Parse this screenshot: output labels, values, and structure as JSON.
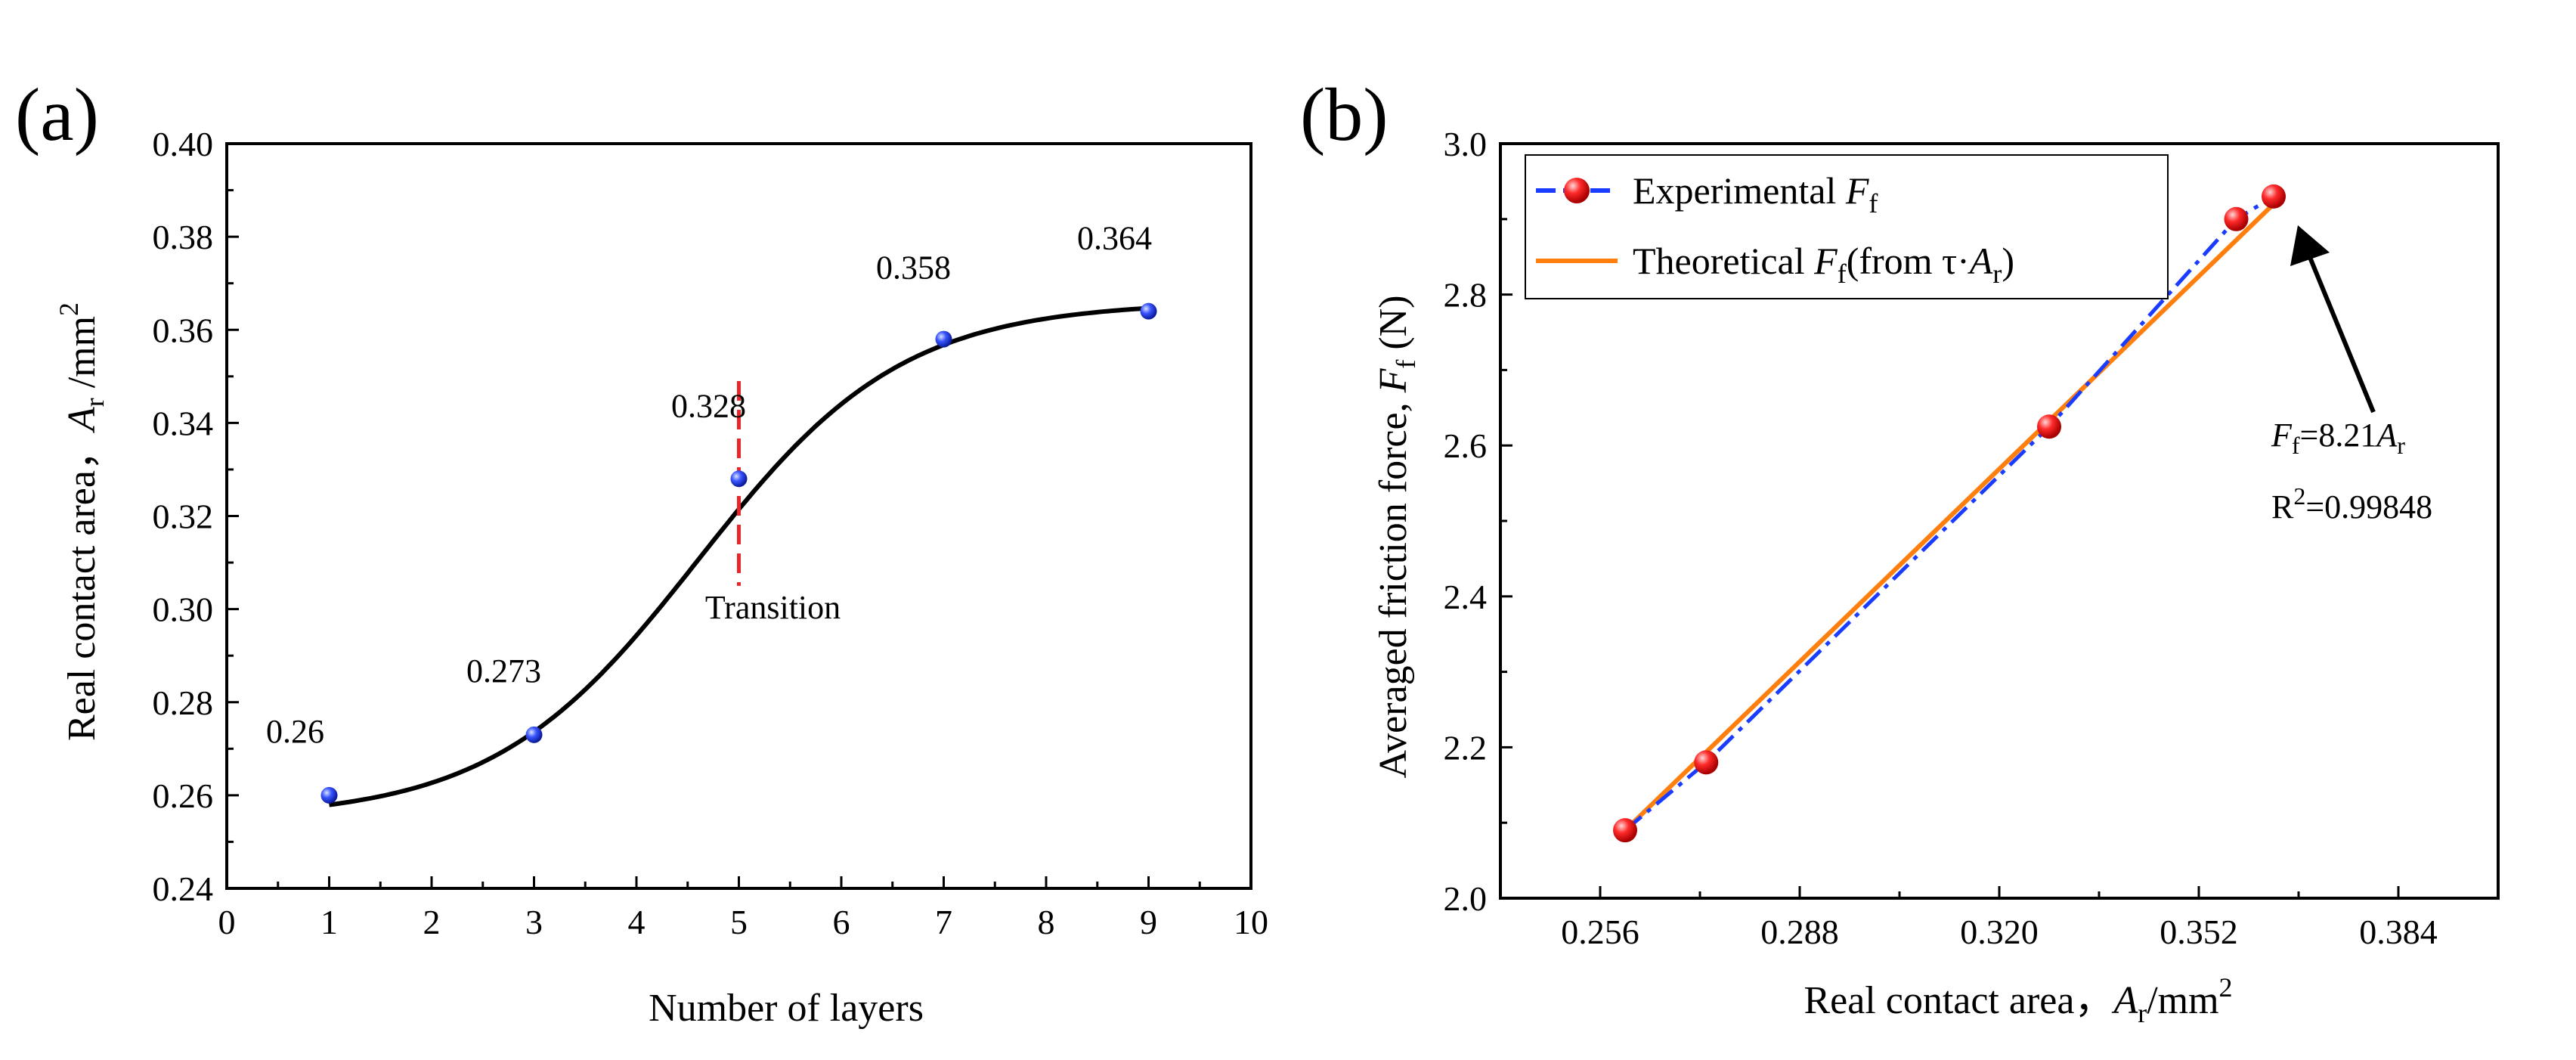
{
  "chart_data": [
    {
      "panel_label": "(a)",
      "type": "scatter",
      "xlabel": "Number of layers",
      "ylabel": {
        "main": "Real contact area，",
        "var": "A",
        "sub": "r",
        "unit": " /mm",
        "sup": "2"
      },
      "xlim": [
        0,
        10
      ],
      "ylim": [
        0.24,
        0.4
      ],
      "xticks": [
        0,
        1,
        2,
        3,
        4,
        5,
        6,
        7,
        8,
        9,
        10
      ],
      "yticks": [
        "0.24",
        "0.26",
        "0.28",
        "0.30",
        "0.32",
        "0.34",
        "0.36",
        "0.38",
        "0.40"
      ],
      "x": [
        1,
        3,
        5,
        7,
        9
      ],
      "y": [
        0.26,
        0.273,
        0.328,
        0.358,
        0.364
      ],
      "point_labels": [
        "0.26",
        "0.273",
        "0.328",
        "0.358",
        "0.364"
      ],
      "fit_curve": "sigmoidal",
      "transition_x": 5,
      "transition_label": "Transition",
      "colors": {
        "points": "#1f3fff",
        "curve": "#000000",
        "transition": "#e8262c"
      },
      "grid": false
    },
    {
      "panel_label": "(b)",
      "type": "line",
      "xlabel": {
        "main": "Real contact area，",
        "var": "A",
        "sub": "r",
        "unit": "/mm",
        "sup": "2"
      },
      "ylabel": {
        "main": "Averaged friction force, ",
        "var": "F",
        "sub": "f",
        "unit": " (N)"
      },
      "xlim": [
        0.24,
        0.4
      ],
      "ylim": [
        2.0,
        3.0
      ],
      "xticks": [
        "0.256",
        "0.288",
        "0.320",
        "0.352",
        "0.384"
      ],
      "yticks": [
        "2.0",
        "2.2",
        "2.4",
        "2.6",
        "2.8",
        "3.0"
      ],
      "series": [
        {
          "name": {
            "pre": "Experimental ",
            "var": "F",
            "sub": "f",
            "post": ""
          },
          "x": [
            0.26,
            0.273,
            0.328,
            0.358,
            0.364
          ],
          "y": [
            2.09,
            2.18,
            2.625,
            2.9,
            2.93
          ],
          "style": "dash-dot",
          "color": "#1a3cff",
          "marker": "red-sphere"
        },
        {
          "name": {
            "pre": "Theoretical ",
            "var": "F",
            "sub": "f",
            "post": "(from τ·",
            "var2": "A",
            "sub2": "r",
            "post2": ")"
          },
          "x": [
            0.26,
            0.364
          ],
          "y": [
            2.09,
            2.92
          ],
          "style": "solid",
          "color": "#ff7f0e"
        }
      ],
      "equation": {
        "var": "F",
        "sub": "f",
        "mid": "=8.21",
        "var2": "A",
        "sub2": "r"
      },
      "r_squared": {
        "main": "R",
        "sup": "2",
        "val": "=0.99848"
      },
      "legend": "top-left",
      "grid": false
    }
  ]
}
